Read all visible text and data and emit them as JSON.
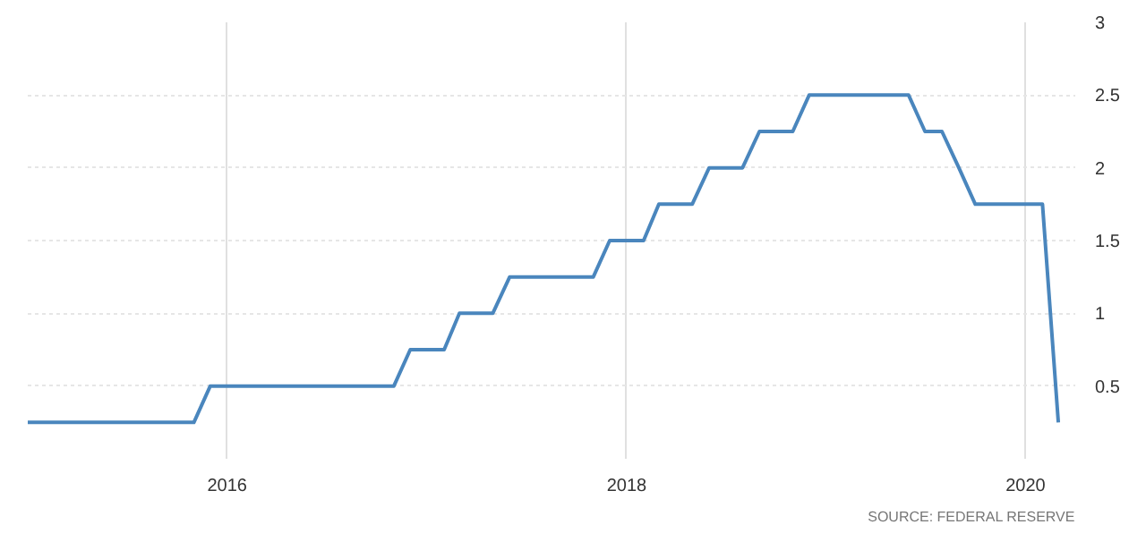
{
  "chart_data": {
    "type": "line",
    "x": [
      "2015-01",
      "2015-11",
      "2015-12",
      "2016-11",
      "2016-12",
      "2017-02",
      "2017-03",
      "2017-05",
      "2017-06",
      "2017-11",
      "2017-12",
      "2018-02",
      "2018-03",
      "2018-05",
      "2018-06",
      "2018-08",
      "2018-09",
      "2018-11",
      "2018-12",
      "2019-06",
      "2019-07",
      "2019-08",
      "2019-09",
      "2019-10",
      "2020-02",
      "2020-03"
    ],
    "series": [
      {
        "color": "#4a86bd",
        "values": [
          0.25,
          0.25,
          0.5,
          0.5,
          0.75,
          0.75,
          1.0,
          1.0,
          1.25,
          1.25,
          1.5,
          1.5,
          1.75,
          1.75,
          2.0,
          2.0,
          2.25,
          2.25,
          2.5,
          2.5,
          2.25,
          2.25,
          2.0,
          1.75,
          1.75,
          0.25
        ]
      }
    ],
    "xlim": [
      "2015-01",
      "2020-04"
    ],
    "xticks": [
      {
        "value": "2016-01",
        "label": "2016"
      },
      {
        "value": "2018-01",
        "label": "2018"
      },
      {
        "value": "2020-01",
        "label": "2020"
      }
    ],
    "ylim": [
      0,
      3
    ],
    "yticks": [
      0.5,
      1,
      1.5,
      2,
      2.5,
      3
    ],
    "grid": true,
    "line_style": "solid",
    "annotations": [
      "SOURCE: FEDERAL RESERVE"
    ]
  }
}
